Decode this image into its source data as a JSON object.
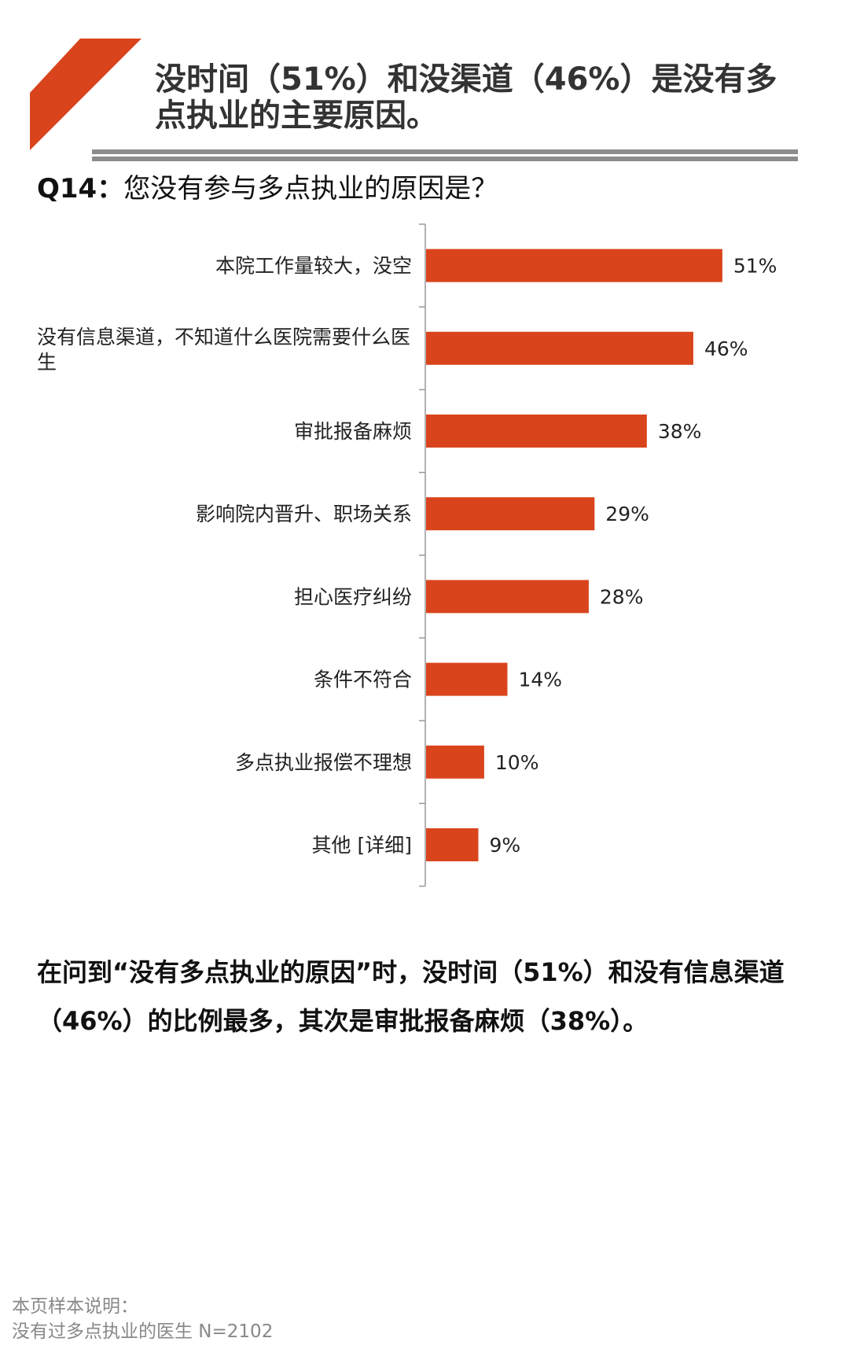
{
  "header": {
    "title": "没时间（51%）和没渠道（46%）是没有多点执业的主要原因。",
    "question_id": "Q14：",
    "question_text": "您没有参与多点执业的原因是？"
  },
  "colors": {
    "accent": "#D9441C",
    "bar": "#D9441C",
    "rule": "#8C8C8C"
  },
  "chart_data": {
    "type": "bar",
    "orientation": "horizontal",
    "categories": [
      "本院工作量较大，没空",
      "没有信息渠道，不知道什么医院需要什么医生",
      "审批报备麻烦",
      "影响院内晋升、职场关系",
      "担心医疗纠纷",
      "条件不符合",
      "多点执业报偿不理想",
      "其他 [详细]"
    ],
    "values": [
      51,
      46,
      38,
      29,
      28,
      14,
      10,
      9
    ],
    "value_labels": [
      "51%",
      "46%",
      "38%",
      "29%",
      "28%",
      "14%",
      "10%",
      "9%"
    ],
    "unit": "%",
    "grid": false
  },
  "conclusion": "在问到“没有多点执业的原因”时，没时间（51%）和没有信息渠道（46%）的比例最多，其次是审批报备麻烦（38%）。",
  "footer": {
    "line1": "本页样本说明：",
    "line2": "没有过多点执业的医生  N=2102"
  }
}
